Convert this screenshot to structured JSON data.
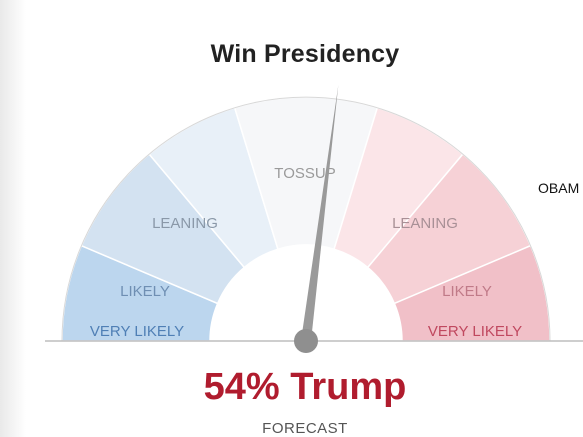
{
  "title": "Win Presidency",
  "side_label": "OBAM",
  "zones": {
    "tossup": "TOSSUP",
    "leaning_left": "LEANING",
    "leaning_right": "LEANING",
    "likely_left": "LIKELY",
    "likely_right": "LIKELY",
    "very_likely_left": "VERY LIKELY",
    "very_likely_right": "VERY LIKELY"
  },
  "forecast": {
    "headline": "54% Trump",
    "label": "FORECAST",
    "trump_probability": 0.54
  },
  "colors": {
    "dem_very_likely": "#bcd6ee",
    "dem_likely": "#d3e2f1",
    "dem_leaning": "#e8f0f8",
    "tossup": "#f6f7f9",
    "rep_leaning": "#fbe5e8",
    "rep_likely": "#f6d1d6",
    "rep_very_likely": "#f1c0c8",
    "needle": "#9a9a9a",
    "headline_red": "#b01c2e"
  }
}
